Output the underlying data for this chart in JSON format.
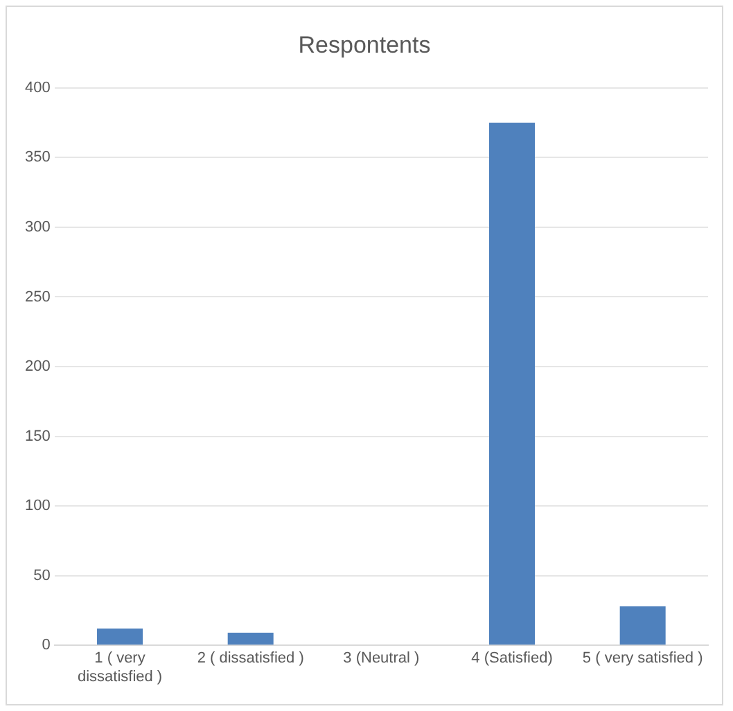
{
  "chart_data": {
    "type": "bar",
    "title": "Respontents",
    "categories": [
      "1 ( very dissatisfied )",
      "2 ( dissatisfied )",
      "3 (Neutral )",
      "4 (Satisfied)",
      "5 ( very satisfied )"
    ],
    "values": [
      12,
      9,
      0,
      375,
      28
    ],
    "color": "#4f81bd",
    "ylim": [
      0,
      400
    ],
    "yticks": [
      0,
      50,
      100,
      150,
      200,
      250,
      300,
      350,
      400
    ],
    "grid": "y"
  }
}
